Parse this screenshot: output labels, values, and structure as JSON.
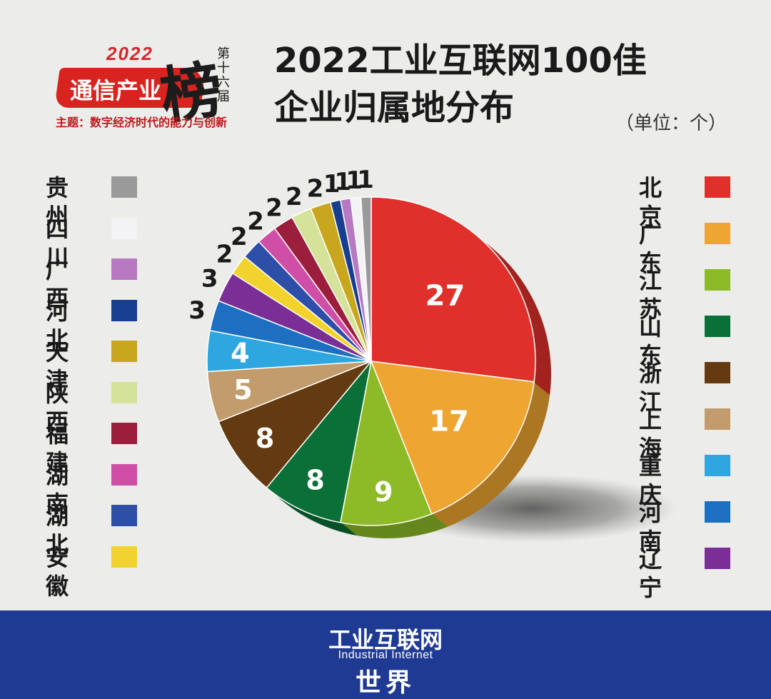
{
  "logo": {
    "year": "2022",
    "name": "通信产业",
    "bang": "榜",
    "edition": "第十六届",
    "theme": "主题：数字经济时代的能力与创新"
  },
  "title_line1": "2022工业互联网100佳",
  "title_line2": "企业归属地分布",
  "unit": "（单位：个）",
  "footer": {
    "line1": "工业互联网",
    "line2": "Industrial Internet",
    "line3": "世界"
  },
  "chart_data": {
    "type": "pie",
    "title": "2022工业互联网100佳企业归属地分布",
    "unit": "（单位：个）",
    "legend_placement": "left-and-right",
    "slices": [
      {
        "label": "北京",
        "value": 27,
        "color": "#e0302b"
      },
      {
        "label": "广东",
        "value": 17,
        "color": "#eea531"
      },
      {
        "label": "江苏",
        "value": 9,
        "color": "#8cbb27"
      },
      {
        "label": "山东",
        "value": 8,
        "color": "#0b6f38"
      },
      {
        "label": "浙江",
        "value": 8,
        "color": "#643a10"
      },
      {
        "label": "上海",
        "value": 5,
        "color": "#c39c6e"
      },
      {
        "label": "重庆",
        "value": 4,
        "color": "#2ea6df"
      },
      {
        "label": "河南",
        "value": 3,
        "color": "#1c6fc1"
      },
      {
        "label": "辽宁",
        "value": 3,
        "color": "#7a2e96"
      },
      {
        "label": "安徽",
        "value": 2,
        "color": "#f2d32e"
      },
      {
        "label": "湖北",
        "value": 2,
        "color": "#2d4fa8"
      },
      {
        "label": "湖南",
        "value": 2,
        "color": "#cf4fa6"
      },
      {
        "label": "福建",
        "value": 2,
        "color": "#9b1f3c"
      },
      {
        "label": "陕西",
        "value": 2,
        "color": "#d4e29a"
      },
      {
        "label": "天津",
        "value": 2,
        "color": "#c8a71e"
      },
      {
        "label": "河北",
        "value": 1,
        "color": "#173e8f"
      },
      {
        "label": "广西",
        "value": 1,
        "color": "#b77ac2"
      },
      {
        "label": "四川",
        "value": 1,
        "color": "#f3f3f6"
      },
      {
        "label": "贵州",
        "value": 1,
        "color": "#9a9a9a"
      }
    ]
  },
  "legend_left": [
    {
      "label": "贵州",
      "color": "#9a9a9a"
    },
    {
      "label": "四川",
      "color": "#f3f3f6"
    },
    {
      "label": "广西",
      "color": "#b77ac2"
    },
    {
      "label": "河北",
      "color": "#173e8f"
    },
    {
      "label": "天津",
      "color": "#c8a71e"
    },
    {
      "label": "陕西",
      "color": "#d4e29a"
    },
    {
      "label": "福建",
      "color": "#9b1f3c"
    },
    {
      "label": "湖南",
      "color": "#cf4fa6"
    },
    {
      "label": "湖北",
      "color": "#2d4fa8"
    },
    {
      "label": "安徽",
      "color": "#f2d32e"
    }
  ],
  "legend_right": [
    {
      "label": "北京",
      "color": "#e0302b"
    },
    {
      "label": "广东",
      "color": "#eea531"
    },
    {
      "label": "江苏",
      "color": "#8cbb27"
    },
    {
      "label": "山东",
      "color": "#0b6f38"
    },
    {
      "label": "浙江",
      "color": "#643a10"
    },
    {
      "label": "上海",
      "color": "#c39c6e"
    },
    {
      "label": "重庆",
      "color": "#2ea6df"
    },
    {
      "label": "河南",
      "color": "#1c6fc1"
    },
    {
      "label": "辽宁",
      "color": "#7a2e96"
    }
  ]
}
